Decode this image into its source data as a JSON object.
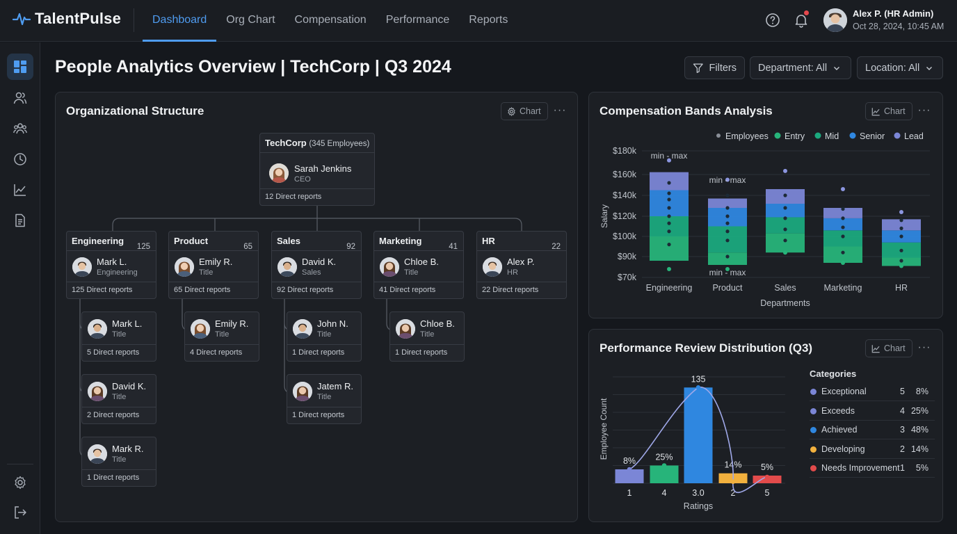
{
  "app": {
    "name": "TalentPulse"
  },
  "nav": {
    "tabs": [
      "Dashboard",
      "Org Chart",
      "Compensation",
      "Performance",
      "Reports"
    ],
    "active": "Dashboard"
  },
  "user": {
    "name": "Alex P. (HR Admin)",
    "datetime": "Oct 28, 2024, 10:45 AM"
  },
  "page": {
    "title": "People Analytics Overview | TechCorp | Q3 2024"
  },
  "filters": {
    "filters_label": "Filters",
    "department": "Department: All",
    "location": "Location: All"
  },
  "org": {
    "title": "Organizational Structure",
    "chart_label": "Chart",
    "root": {
      "company": "TechCorp",
      "employees": "(345 Employees)",
      "name": "Sarah Jenkins",
      "role": "CEO",
      "reports": "12 Direct reports"
    },
    "departments": [
      {
        "dept": "Engineering",
        "count": "125",
        "name": "Mark L.",
        "sub": "Engineering",
        "reports": "125 Direct reports"
      },
      {
        "dept": "Product",
        "count": "65",
        "name": "Emily R.",
        "sub": "Title",
        "reports": "65 Direct reports"
      },
      {
        "dept": "Sales",
        "count": "92",
        "name": "David K.",
        "sub": "Sales",
        "reports": "92 Direct reports"
      },
      {
        "dept": "Marketing",
        "count": "41",
        "name": "Chloe B.",
        "sub": "Title",
        "reports": "41 Direct reports"
      },
      {
        "dept": "HR",
        "count": "22",
        "name": "Alex P.",
        "sub": "HR",
        "reports": "22 Direct reports"
      }
    ],
    "children": {
      "engineering": [
        {
          "name": "Mark L.",
          "sub": "Title",
          "reports": "5 Direct reports"
        },
        {
          "name": "David K.",
          "sub": "Title",
          "reports": "2 Direct reports"
        },
        {
          "name": "Mark R.",
          "sub": "Title",
          "reports": "1 Direct reports"
        }
      ],
      "product": [
        {
          "name": "Emily R.",
          "sub": "Title",
          "reports": "4 Direct reports"
        }
      ],
      "sales": [
        {
          "name": "John N.",
          "sub": "Title",
          "reports": "1 Direct reports"
        },
        {
          "name": "Jatem R.",
          "sub": "Title",
          "reports": "1 Direct reports"
        }
      ],
      "marketing": [
        {
          "name": "Chloe B.",
          "sub": "Title",
          "reports": "1 Direct reports"
        }
      ]
    }
  },
  "comp": {
    "title": "Compensation Bands Analysis",
    "chart_label": "Chart",
    "minmax_label": "min - max",
    "chart_data": {
      "type": "bar",
      "subtype": "stacked-range",
      "xlabel": "Departments",
      "ylabel": "Salary",
      "categories": [
        "Engineering",
        "Product",
        "Sales",
        "Marketing",
        "HR"
      ],
      "y_ticks": [
        "$70k",
        "$90k",
        "$100k",
        "$120k",
        "$140k",
        "$160k",
        "$180k"
      ],
      "legend": [
        "Employees",
        "Entry",
        "Mid",
        "Senior",
        "Lead"
      ],
      "legend_position": "top-right",
      "bands": [
        {
          "category": "Engineering",
          "entry": [
            86,
            100
          ],
          "mid": [
            100,
            120
          ],
          "senior": [
            120,
            145
          ],
          "lead": [
            145,
            162
          ],
          "min": 78,
          "max": 172
        },
        {
          "category": "Product",
          "entry": [
            82,
            92
          ],
          "mid": [
            92,
            110
          ],
          "senior": [
            110,
            128
          ],
          "lead": [
            128,
            137
          ],
          "min": 78,
          "max": 155
        },
        {
          "category": "Sales",
          "entry": [
            92,
            103
          ],
          "mid": [
            103,
            119
          ],
          "senior": [
            119,
            132
          ],
          "lead": [
            132,
            146
          ],
          "min": 92,
          "max": 163
        },
        {
          "category": "Marketing",
          "entry": [
            84,
            95
          ],
          "mid": [
            95,
            106
          ],
          "senior": [
            106,
            118
          ],
          "lead": [
            118,
            128
          ],
          "min": 84,
          "max": 146
        },
        {
          "category": "HR",
          "entry": [
            81,
            89
          ],
          "mid": [
            89,
            97
          ],
          "senior": [
            97,
            106
          ],
          "lead": [
            106,
            117
          ],
          "min": 81,
          "max": 124
        }
      ],
      "employees": {
        "Engineering": [
          96,
          105,
          113,
          120,
          128,
          136,
          142,
          152
        ],
        "Product": [
          90,
          98,
          105,
          113,
          120,
          128,
          140
        ],
        "Sales": [
          98,
          107,
          118,
          128,
          140
        ],
        "Marketing": [
          92,
          100,
          109,
          118,
          127
        ],
        "HR": [
          86,
          93,
          100,
          108,
          116
        ]
      }
    }
  },
  "perf": {
    "title": "Performance Review Distribution (Q3)",
    "chart_label": "Chart",
    "legend_title": "Categories",
    "chart_data": {
      "type": "bar",
      "xlabel": "Ratings",
      "ylabel": "Employee Count",
      "categories": [
        "1",
        "4",
        "3.0",
        "2",
        "5"
      ],
      "values": [
        8,
        25,
        135,
        14,
        5
      ],
      "data_labels": [
        "8%",
        "25%",
        "135",
        "14%",
        "5%"
      ],
      "colors": [
        "#7b86d6",
        "#27b47a",
        "#2f87e0",
        "#f2b13e",
        "#e24b4b"
      ],
      "curve": true,
      "ylim": [
        0,
        150
      ]
    },
    "legend": [
      {
        "label": "Exceptional",
        "count": "5",
        "pct": "8%",
        "color": "#7b86d6"
      },
      {
        "label": "Exceeds",
        "count": "4",
        "pct": "25%",
        "color": "#7b86d6"
      },
      {
        "label": "Achieved",
        "count": "3",
        "pct": "48%",
        "color": "#2f87e0"
      },
      {
        "label": "Developing",
        "count": "2",
        "pct": "14%",
        "color": "#f2b13e"
      },
      {
        "label": "Needs Improvement",
        "count": "1",
        "pct": "5%",
        "color": "#e24b4b"
      }
    ]
  },
  "colors": {
    "accent": "#4f9cf0",
    "entry": "#27b47a",
    "mid": "#1ba97e",
    "senior": "#2f87e0",
    "lead": "#7b86d6"
  },
  "icons": [
    "pulse-logo-icon",
    "help-icon",
    "bell-icon",
    "dashboard-icon",
    "user-icon",
    "users-icon",
    "clock-icon",
    "chart-line-icon",
    "document-icon",
    "settings-icon",
    "logout-icon",
    "filter-icon",
    "chevron-down-icon",
    "gear-icon",
    "more-icon"
  ]
}
